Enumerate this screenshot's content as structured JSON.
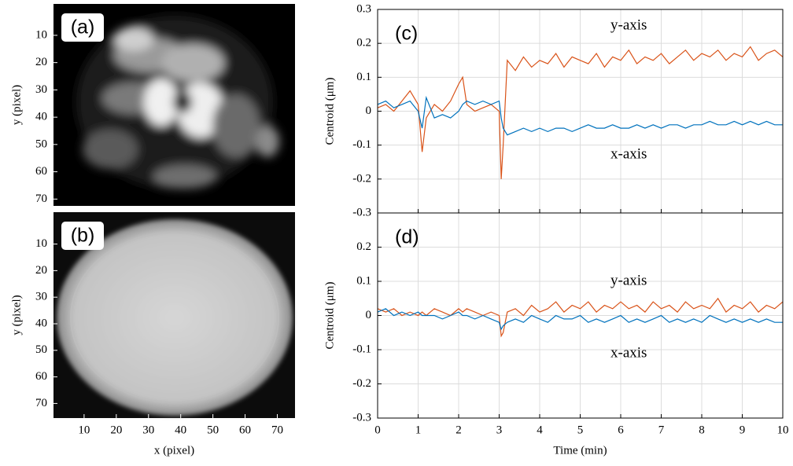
{
  "chart_data": [
    {
      "type": "image",
      "label": "(a)",
      "ylabel": "y (pixel)",
      "xlim": [
        0.5,
        75.5
      ],
      "ylim": [
        -1.5,
        72.5
      ],
      "yticks": [
        10,
        20,
        30,
        40,
        50,
        60,
        70
      ]
    },
    {
      "type": "image",
      "label": "(b)",
      "ylabel": "y (pixel)",
      "xlabel": "x (pixel)",
      "xlim": [
        0.5,
        75.5
      ],
      "ylim": [
        -2,
        75.5
      ],
      "yticks": [
        10,
        20,
        30,
        40,
        50,
        60,
        70
      ],
      "xticks": [
        10,
        20,
        30,
        40,
        50,
        60,
        70
      ]
    },
    {
      "type": "line",
      "label": "(c)",
      "ylabel": "Centroid (μm)",
      "xlim": [
        0,
        10
      ],
      "ylim": [
        -0.3,
        0.3
      ],
      "xticks": [
        0,
        1,
        2,
        3,
        4,
        5,
        6,
        7,
        8,
        9,
        10
      ],
      "xticklabels": false,
      "yticks": [
        -0.3,
        -0.2,
        -0.1,
        0,
        0.1,
        0.2,
        0.3
      ],
      "grid": true,
      "x": [
        0,
        0.2,
        0.4,
        0.6,
        0.8,
        1,
        1.1,
        1.2,
        1.4,
        1.6,
        1.8,
        2,
        2.1,
        2.2,
        2.4,
        2.6,
        2.8,
        3,
        3.05,
        3.1,
        3.2,
        3.4,
        3.6,
        3.8,
        4,
        4.2,
        4.4,
        4.6,
        4.8,
        5,
        5.2,
        5.4,
        5.6,
        5.8,
        6,
        6.2,
        6.4,
        6.6,
        6.8,
        7,
        7.2,
        7.4,
        7.6,
        7.8,
        8,
        8.2,
        8.4,
        8.6,
        8.8,
        9,
        9.2,
        9.4,
        9.6,
        9.8,
        10
      ],
      "series": [
        {
          "name": "y-axis",
          "color": "#d95319",
          "values": [
            0.01,
            0.02,
            0.0,
            0.03,
            0.06,
            0.02,
            -0.12,
            -0.02,
            0.02,
            0.0,
            0.03,
            0.08,
            0.1,
            0.02,
            0.0,
            0.01,
            0.02,
            0.0,
            -0.2,
            -0.1,
            0.15,
            0.12,
            0.16,
            0.13,
            0.15,
            0.14,
            0.17,
            0.13,
            0.16,
            0.15,
            0.14,
            0.17,
            0.13,
            0.16,
            0.15,
            0.18,
            0.14,
            0.16,
            0.15,
            0.17,
            0.14,
            0.16,
            0.18,
            0.15,
            0.17,
            0.16,
            0.18,
            0.15,
            0.17,
            0.16,
            0.19,
            0.15,
            0.17,
            0.18,
            0.16
          ]
        },
        {
          "name": "x-axis",
          "color": "#0072bd",
          "values": [
            0.02,
            0.03,
            0.01,
            0.02,
            0.03,
            0.0,
            -0.05,
            0.04,
            -0.02,
            -0.01,
            -0.02,
            0.0,
            0.02,
            0.03,
            0.02,
            0.03,
            0.02,
            0.03,
            -0.02,
            -0.05,
            -0.07,
            -0.06,
            -0.05,
            -0.06,
            -0.05,
            -0.06,
            -0.05,
            -0.05,
            -0.06,
            -0.05,
            -0.04,
            -0.05,
            -0.05,
            -0.04,
            -0.05,
            -0.05,
            -0.04,
            -0.05,
            -0.04,
            -0.05,
            -0.04,
            -0.04,
            -0.05,
            -0.04,
            -0.04,
            -0.03,
            -0.04,
            -0.04,
            -0.03,
            -0.04,
            -0.03,
            -0.04,
            -0.03,
            -0.04,
            -0.04
          ]
        }
      ]
    },
    {
      "type": "line",
      "label": "(d)",
      "ylabel": "Centroid (μm)",
      "xlabel": "Time (min)",
      "xlim": [
        0,
        10
      ],
      "ylim": [
        -0.3,
        0.3
      ],
      "xticks": [
        0,
        1,
        2,
        3,
        4,
        5,
        6,
        7,
        8,
        9,
        10
      ],
      "yticks": [
        -0.3,
        -0.2,
        -0.1,
        0,
        0.1,
        0.2
      ],
      "grid": true,
      "x": [
        0,
        0.2,
        0.4,
        0.6,
        0.8,
        1,
        1.1,
        1.2,
        1.4,
        1.6,
        1.8,
        2,
        2.1,
        2.2,
        2.4,
        2.6,
        2.8,
        3,
        3.05,
        3.1,
        3.2,
        3.4,
        3.6,
        3.8,
        4,
        4.2,
        4.4,
        4.6,
        4.8,
        5,
        5.2,
        5.4,
        5.6,
        5.8,
        6,
        6.2,
        6.4,
        6.6,
        6.8,
        7,
        7.2,
        7.4,
        7.6,
        7.8,
        8,
        8.2,
        8.4,
        8.6,
        8.8,
        9,
        9.2,
        9.4,
        9.6,
        9.8,
        10
      ],
      "series": [
        {
          "name": "y-axis",
          "color": "#d95319",
          "values": [
            0.02,
            0.01,
            0.02,
            0.0,
            0.01,
            0.0,
            0.01,
            0.0,
            0.02,
            0.01,
            0.0,
            0.02,
            0.01,
            0.02,
            0.01,
            0.0,
            0.01,
            0.0,
            -0.06,
            -0.05,
            0.01,
            0.02,
            0.0,
            0.03,
            0.01,
            0.02,
            0.04,
            0.01,
            0.03,
            0.02,
            0.04,
            0.01,
            0.03,
            0.02,
            0.04,
            0.02,
            0.03,
            0.01,
            0.04,
            0.02,
            0.03,
            0.01,
            0.04,
            0.02,
            0.03,
            0.02,
            0.05,
            0.01,
            0.03,
            0.02,
            0.04,
            0.01,
            0.03,
            0.02,
            0.04
          ]
        },
        {
          "name": "x-axis",
          "color": "#0072bd",
          "values": [
            0.01,
            0.02,
            0.0,
            0.01,
            0.0,
            0.01,
            0.0,
            0.0,
            0.0,
            -0.01,
            0.0,
            0.01,
            0.0,
            0.0,
            -0.01,
            0.0,
            -0.01,
            -0.02,
            -0.04,
            -0.03,
            -0.02,
            -0.01,
            -0.02,
            0.0,
            -0.01,
            -0.02,
            0.0,
            -0.01,
            -0.01,
            0.0,
            -0.02,
            -0.01,
            -0.02,
            -0.01,
            0.0,
            -0.02,
            -0.01,
            -0.02,
            -0.01,
            0.0,
            -0.02,
            -0.01,
            -0.02,
            -0.01,
            -0.02,
            0.0,
            -0.01,
            -0.02,
            -0.01,
            -0.02,
            -0.01,
            -0.02,
            -0.01,
            -0.02,
            -0.02
          ]
        }
      ]
    }
  ]
}
